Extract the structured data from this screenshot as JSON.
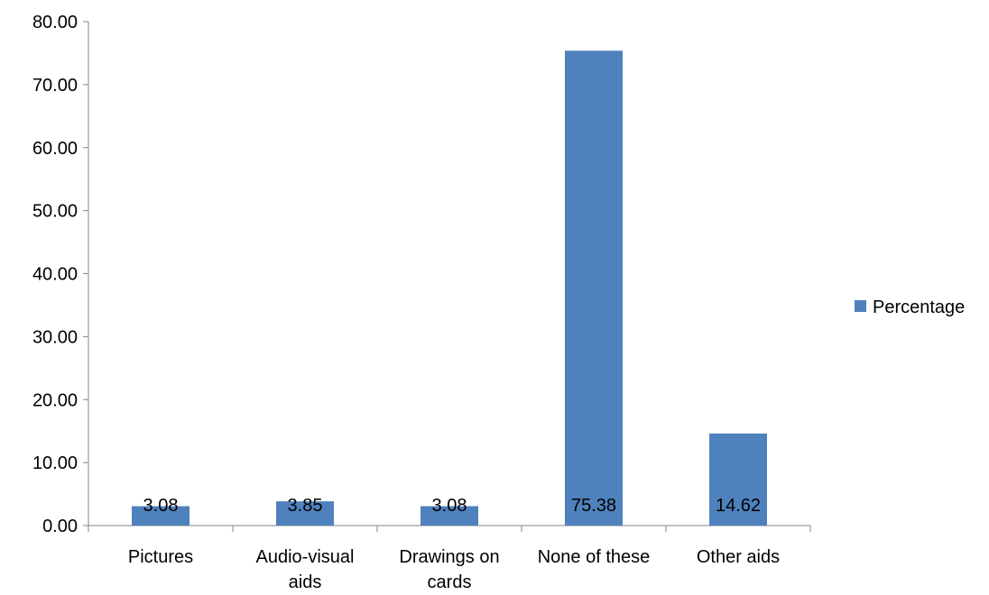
{
  "chart_data": {
    "type": "bar",
    "categories": [
      [
        "Pictures"
      ],
      [
        "Audio-visual",
        "aids"
      ],
      [
        "Drawings on",
        "cards"
      ],
      [
        "None of these"
      ],
      [
        "Other aids"
      ]
    ],
    "series": [
      {
        "name": "Percentage",
        "values": [
          3.08,
          3.85,
          3.08,
          75.38,
          14.62
        ],
        "labels": [
          "3.08",
          "3.85",
          "3.08",
          "75.38",
          "14.62"
        ],
        "color": "#4F81BD"
      }
    ],
    "yticks": [
      "0.00",
      "10.00",
      "20.00",
      "30.00",
      "40.00",
      "50.00",
      "60.00",
      "70.00",
      "80.00"
    ],
    "ylim": [
      0,
      80
    ],
    "legend_position": "right",
    "grid": false
  }
}
